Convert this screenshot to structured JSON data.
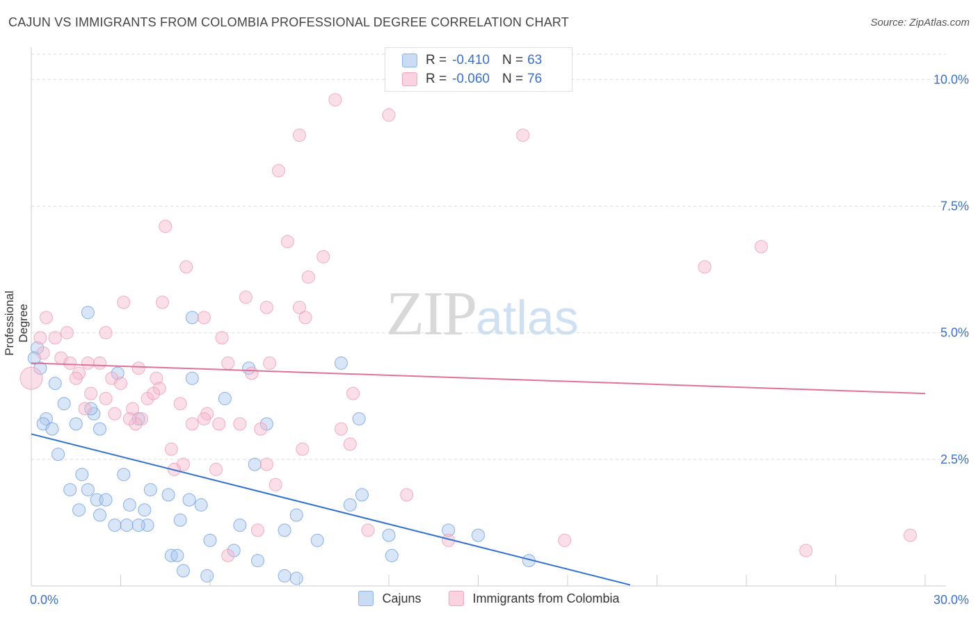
{
  "title": "CAJUN VS IMMIGRANTS FROM COLOMBIA PROFESSIONAL DEGREE CORRELATION CHART",
  "source": "Source: ZipAtlas.com",
  "watermark": {
    "zip": "ZIP",
    "atlas": "atlas"
  },
  "legend_top": {
    "rows": [
      {
        "r_label": "R =",
        "r_value": "-0.410",
        "n_label": "N =",
        "n_value": "63",
        "color": "#aac8ef"
      },
      {
        "r_label": "R =",
        "r_value": "-0.060",
        "n_label": "N =",
        "n_value": "76",
        "color": "#f6b8cc"
      }
    ]
  },
  "legend_bottom": [
    {
      "label": "Cajuns",
      "color": "#aac8ef"
    },
    {
      "label": "Immigrants from Colombia",
      "color": "#f6b8cc"
    }
  ],
  "chart_data": {
    "type": "scatter",
    "title": "CAJUN VS IMMIGRANTS FROM COLOMBIA PROFESSIONAL DEGREE CORRELATION CHART",
    "xlabel": "",
    "ylabel": "Professional Degree",
    "xlim": [
      0,
      30
    ],
    "ylim": [
      0,
      10.5
    ],
    "x_tick_labels": [
      "0.0%",
      "30.0%"
    ],
    "y_ticks": [
      2.5,
      5.0,
      7.5,
      10.0
    ],
    "y_tick_labels": [
      "2.5%",
      "5.0%",
      "7.5%",
      "10.0%"
    ],
    "grid": true,
    "series": [
      {
        "name": "Cajuns",
        "color": "#6f9fdc",
        "fill": "#aac8ef",
        "trend": {
          "x": [
            0,
            20.1
          ],
          "y": [
            3.0,
            0.02
          ],
          "color": "#2f6fcf"
        },
        "points": [
          [
            0.2,
            4.7
          ],
          [
            0.3,
            4.3
          ],
          [
            0.8,
            4.0
          ],
          [
            1.1,
            3.6
          ],
          [
            0.5,
            3.3
          ],
          [
            0.4,
            3.2
          ],
          [
            0.7,
            3.1
          ],
          [
            1.5,
            3.2
          ],
          [
            2.3,
            3.1
          ],
          [
            2.1,
            3.4
          ],
          [
            3.6,
            3.3
          ],
          [
            1.9,
            5.4
          ],
          [
            5.4,
            5.3
          ],
          [
            5.4,
            4.1
          ],
          [
            6.5,
            3.7
          ],
          [
            0.9,
            2.6
          ],
          [
            1.7,
            2.2
          ],
          [
            3.1,
            2.2
          ],
          [
            1.3,
            1.9
          ],
          [
            1.9,
            1.9
          ],
          [
            4.0,
            1.9
          ],
          [
            4.6,
            1.8
          ],
          [
            2.2,
            1.7
          ],
          [
            2.5,
            1.7
          ],
          [
            3.3,
            1.6
          ],
          [
            3.8,
            1.5
          ],
          [
            5.7,
            1.6
          ],
          [
            1.6,
            1.5
          ],
          [
            2.3,
            1.4
          ],
          [
            3.2,
            1.2
          ],
          [
            3.9,
            1.2
          ],
          [
            2.8,
            1.2
          ],
          [
            3.6,
            1.2
          ],
          [
            5.0,
            1.3
          ],
          [
            7.0,
            1.2
          ],
          [
            8.9,
            1.4
          ],
          [
            8.5,
            1.1
          ],
          [
            6.0,
            0.9
          ],
          [
            6.8,
            0.7
          ],
          [
            9.6,
            0.9
          ],
          [
            4.7,
            0.6
          ],
          [
            4.9,
            0.6
          ],
          [
            7.6,
            0.5
          ],
          [
            5.1,
            0.3
          ],
          [
            5.9,
            0.2
          ],
          [
            8.9,
            0.15
          ],
          [
            8.5,
            0.2
          ],
          [
            10.4,
            4.4
          ],
          [
            7.3,
            4.3
          ],
          [
            7.9,
            3.2
          ],
          [
            7.5,
            2.4
          ],
          [
            11.0,
            3.3
          ],
          [
            11.1,
            1.8
          ],
          [
            10.7,
            1.6
          ],
          [
            12.0,
            1.0
          ],
          [
            12.1,
            0.6
          ],
          [
            14.0,
            1.1
          ],
          [
            15.0,
            1.0
          ],
          [
            16.7,
            0.5
          ],
          [
            0.1,
            4.5
          ],
          [
            2.0,
            3.5
          ],
          [
            2.9,
            4.2
          ],
          [
            5.3,
            1.7
          ]
        ]
      },
      {
        "name": "Immigrants from Colombia",
        "color": "#ee9ab6",
        "fill": "#f6b8cc",
        "trend": {
          "x": [
            0,
            30
          ],
          "y": [
            4.4,
            3.8
          ],
          "color": "#e0709a"
        },
        "points": [
          [
            0.0,
            4.1
          ],
          [
            0.5,
            5.3
          ],
          [
            0.3,
            4.9
          ],
          [
            0.4,
            4.6
          ],
          [
            0.8,
            4.9
          ],
          [
            1.2,
            5.0
          ],
          [
            1.0,
            4.5
          ],
          [
            1.3,
            4.4
          ],
          [
            1.6,
            4.2
          ],
          [
            1.9,
            4.4
          ],
          [
            2.3,
            4.4
          ],
          [
            2.0,
            3.8
          ],
          [
            1.8,
            3.5
          ],
          [
            2.5,
            3.7
          ],
          [
            2.7,
            4.1
          ],
          [
            3.0,
            4.0
          ],
          [
            3.4,
            3.5
          ],
          [
            3.7,
            3.3
          ],
          [
            3.6,
            4.3
          ],
          [
            4.2,
            4.1
          ],
          [
            4.3,
            3.9
          ],
          [
            3.9,
            3.7
          ],
          [
            4.5,
            7.1
          ],
          [
            5.2,
            6.3
          ],
          [
            4.4,
            5.6
          ],
          [
            3.1,
            5.6
          ],
          [
            2.5,
            5.0
          ],
          [
            5.8,
            5.3
          ],
          [
            6.4,
            4.9
          ],
          [
            6.6,
            4.4
          ],
          [
            7.2,
            5.7
          ],
          [
            7.9,
            5.5
          ],
          [
            7.4,
            4.2
          ],
          [
            8.0,
            4.4
          ],
          [
            5.0,
            3.6
          ],
          [
            5.4,
            3.2
          ],
          [
            5.9,
            3.4
          ],
          [
            6.3,
            3.2
          ],
          [
            7.0,
            3.2
          ],
          [
            7.7,
            3.1
          ],
          [
            8.6,
            6.8
          ],
          [
            9.3,
            6.1
          ],
          [
            9.8,
            6.5
          ],
          [
            9.0,
            5.5
          ],
          [
            9.2,
            5.3
          ],
          [
            10.8,
            3.8
          ],
          [
            10.4,
            3.1
          ],
          [
            10.7,
            2.8
          ],
          [
            9.1,
            2.7
          ],
          [
            5.8,
            3.3
          ],
          [
            4.7,
            2.7
          ],
          [
            5.1,
            2.4
          ],
          [
            6.2,
            2.3
          ],
          [
            7.9,
            2.4
          ],
          [
            8.2,
            2.0
          ],
          [
            4.8,
            2.3
          ],
          [
            12.6,
            1.8
          ],
          [
            7.6,
            1.1
          ],
          [
            11.3,
            1.1
          ],
          [
            14.0,
            0.9
          ],
          [
            17.9,
            0.9
          ],
          [
            26.0,
            0.7
          ],
          [
            29.5,
            1.0
          ],
          [
            22.6,
            6.3
          ],
          [
            24.5,
            6.7
          ],
          [
            12.0,
            9.3
          ],
          [
            10.2,
            9.6
          ],
          [
            9.0,
            8.9
          ],
          [
            8.3,
            8.2
          ],
          [
            16.5,
            8.9
          ],
          [
            6.6,
            0.6
          ],
          [
            3.5,
            3.2
          ],
          [
            4.1,
            3.8
          ],
          [
            1.5,
            4.1
          ],
          [
            2.8,
            3.4
          ],
          [
            3.3,
            3.3
          ]
        ]
      }
    ]
  }
}
